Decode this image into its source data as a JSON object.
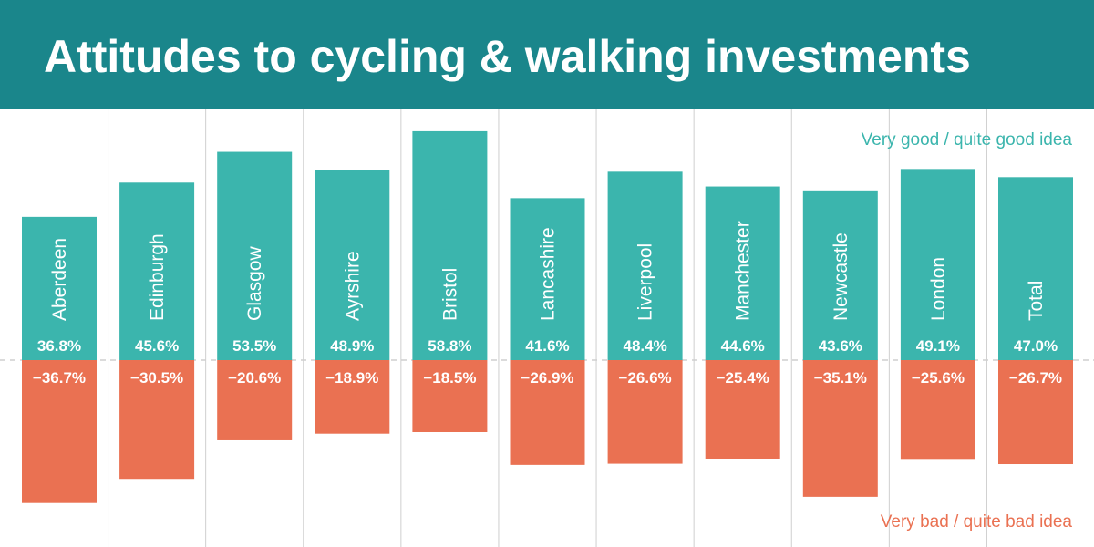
{
  "title": "Attitudes to cycling & walking investments",
  "legend": {
    "positive_label": "Very good / quite good idea",
    "negative_label": "Very bad / quite bad idea"
  },
  "colors": {
    "header": "#1a868b",
    "positive": "#3bb5ad",
    "negative": "#ea7152",
    "gridline": "#cfcfcf"
  },
  "chart_data": {
    "type": "bar",
    "categories": [
      "Aberdeen",
      "Edinburgh",
      "Glasgow",
      "Ayrshire",
      "Bristol",
      "Lancashire",
      "Liverpool",
      "Manchester",
      "Newcastle",
      "London",
      "Total"
    ],
    "series": [
      {
        "name": "Very good / quite good idea",
        "values": [
          36.8,
          45.6,
          53.5,
          48.9,
          58.8,
          41.6,
          48.4,
          44.6,
          43.6,
          49.1,
          47.0
        ],
        "labels": [
          "36.8%",
          "45.6%",
          "53.5%",
          "48.9%",
          "58.8%",
          "41.6%",
          "48.4%",
          "44.6%",
          "43.6%",
          "49.1%",
          "47.0%"
        ]
      },
      {
        "name": "Very bad / quite bad idea",
        "values": [
          -36.7,
          -30.5,
          -20.6,
          -18.9,
          -18.5,
          -26.9,
          -26.6,
          -25.4,
          -35.1,
          -25.6,
          -26.7
        ],
        "labels": [
          "−36.7%",
          "−30.5%",
          "−20.6%",
          "−18.9%",
          "−18.5%",
          "−26.9%",
          "−26.6%",
          "−25.4%",
          "−35.1%",
          "−25.6%",
          "−26.7%"
        ]
      }
    ],
    "stacked": "diverging",
    "legend_position": "right",
    "grid": true
  }
}
